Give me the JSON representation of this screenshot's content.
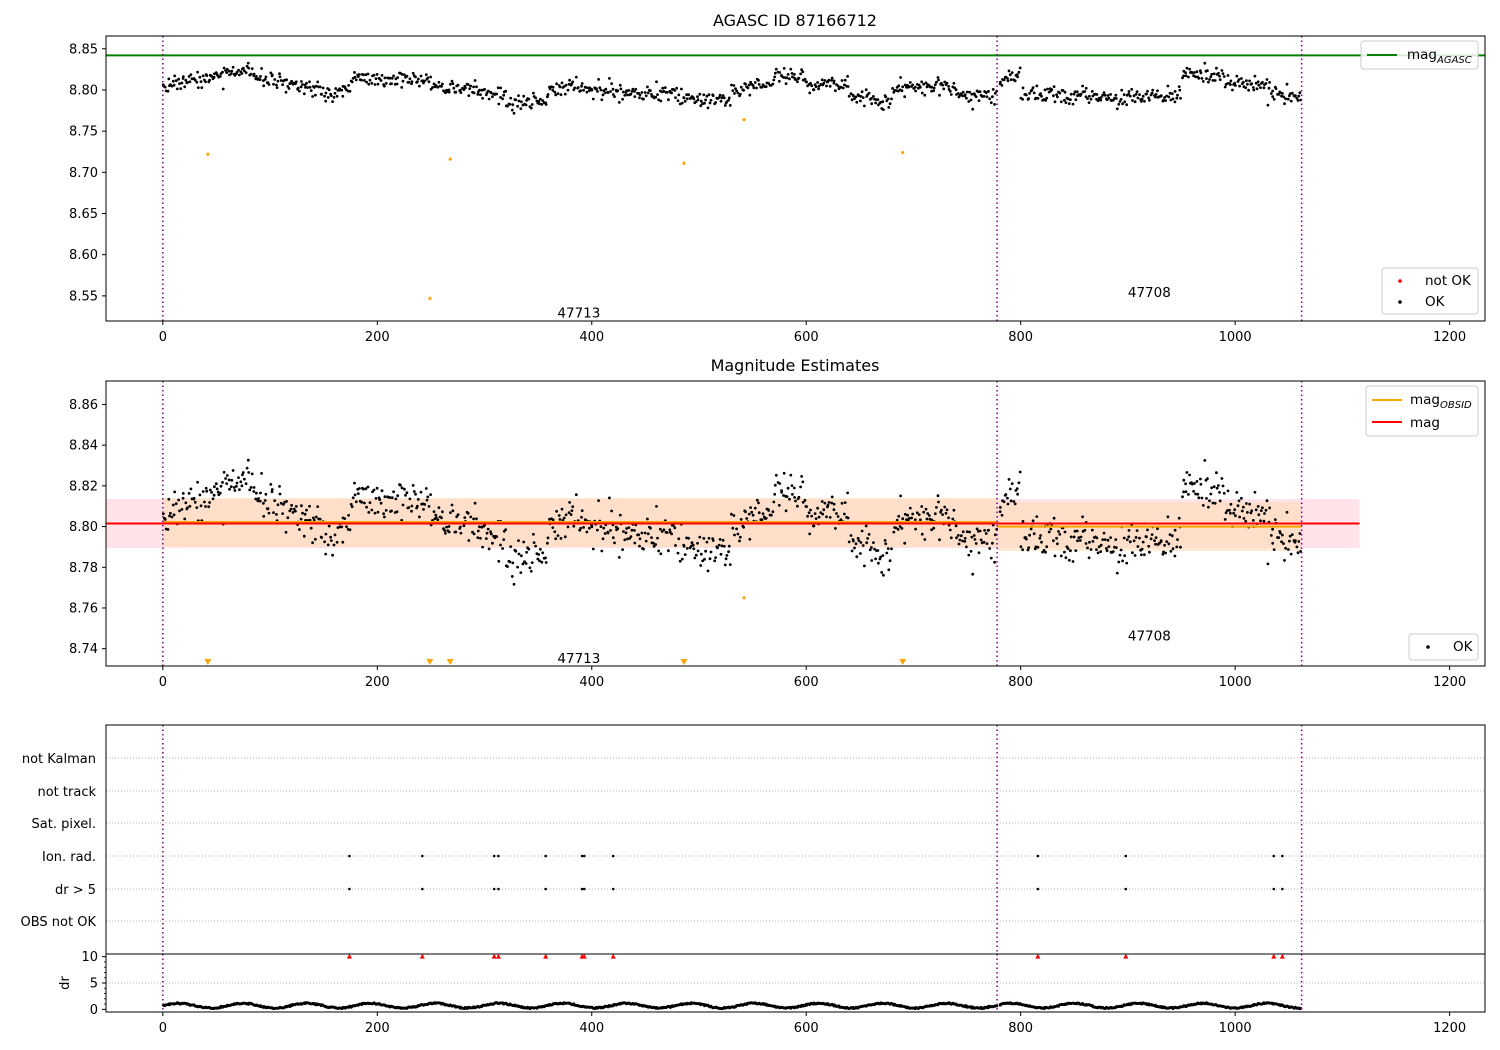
{
  "colors": {
    "ok": "#000000",
    "not_ok": "#ff0000",
    "mag_agasc": "#008000",
    "mag_obsid": "#ffa500",
    "mag": "#ff0000",
    "obs_boundary": "#800080",
    "band_mag": "#ffc0cb",
    "band_obsid": "#ffdab0"
  },
  "chart_data": [
    {
      "type": "scatter",
      "title": "AGASC ID 87166712",
      "xlim": [
        -53,
        1233
      ],
      "ylim": [
        8.5195,
        8.8655
      ],
      "xticks": [
        0,
        200,
        400,
        600,
        800,
        1000,
        1200
      ],
      "yticks": [
        "8.55",
        "8.60",
        "8.65",
        "8.70",
        "8.75",
        "8.80",
        "8.85"
      ],
      "mag_agasc": 8.842,
      "obs_boundaries": [
        0,
        778,
        1062
      ],
      "obs_labels": [
        {
          "text": "47713",
          "x": 388,
          "y": 8.53
        },
        {
          "text": "47708",
          "x": 920,
          "y": 8.555
        }
      ],
      "outliers": [
        {
          "x": 42,
          "y": 8.722
        },
        {
          "x": 249,
          "y": 8.547
        },
        {
          "x": 268,
          "y": 8.716
        },
        {
          "x": 486,
          "y": 8.711
        },
        {
          "x": 542,
          "y": 8.764
        },
        {
          "x": 690,
          "y": 8.724
        }
      ],
      "segments": [
        {
          "x0": 0,
          "x1": 60,
          "y0": 8.808,
          "y1": 8.818,
          "noise": 0.005
        },
        {
          "x0": 60,
          "x1": 85,
          "y0": 8.824,
          "y1": 8.822,
          "noise": 0.004
        },
        {
          "x0": 85,
          "x1": 150,
          "y0": 8.815,
          "y1": 8.8,
          "noise": 0.005
        },
        {
          "x0": 150,
          "x1": 175,
          "y0": 8.79,
          "y1": 8.802,
          "noise": 0.005
        },
        {
          "x0": 175,
          "x1": 250,
          "y0": 8.815,
          "y1": 8.812,
          "noise": 0.005
        },
        {
          "x0": 250,
          "x1": 320,
          "y0": 8.805,
          "y1": 8.793,
          "noise": 0.005
        },
        {
          "x0": 320,
          "x1": 360,
          "y0": 8.782,
          "y1": 8.788,
          "noise": 0.005
        },
        {
          "x0": 360,
          "x1": 420,
          "y0": 8.805,
          "y1": 8.8,
          "noise": 0.005
        },
        {
          "x0": 420,
          "x1": 480,
          "y0": 8.797,
          "y1": 8.797,
          "noise": 0.005
        },
        {
          "x0": 480,
          "x1": 530,
          "y0": 8.788,
          "y1": 8.788,
          "noise": 0.005
        },
        {
          "x0": 530,
          "x1": 570,
          "y0": 8.8,
          "y1": 8.806,
          "noise": 0.005
        },
        {
          "x0": 570,
          "x1": 600,
          "y0": 8.818,
          "y1": 8.815,
          "noise": 0.005
        },
        {
          "x0": 600,
          "x1": 640,
          "y0": 8.805,
          "y1": 8.81,
          "noise": 0.005
        },
        {
          "x0": 640,
          "x1": 680,
          "y0": 8.795,
          "y1": 8.786,
          "noise": 0.005
        },
        {
          "x0": 680,
          "x1": 740,
          "y0": 8.802,
          "y1": 8.805,
          "noise": 0.005
        },
        {
          "x0": 740,
          "x1": 778,
          "y0": 8.795,
          "y1": 8.79,
          "noise": 0.005
        },
        {
          "x0": 780,
          "x1": 800,
          "y0": 8.81,
          "y1": 8.818,
          "noise": 0.005
        },
        {
          "x0": 800,
          "x1": 900,
          "y0": 8.795,
          "y1": 8.79,
          "noise": 0.005
        },
        {
          "x0": 900,
          "x1": 950,
          "y0": 8.795,
          "y1": 8.793,
          "noise": 0.005
        },
        {
          "x0": 950,
          "x1": 990,
          "y0": 8.822,
          "y1": 8.815,
          "noise": 0.005
        },
        {
          "x0": 990,
          "x1": 1030,
          "y0": 8.81,
          "y1": 8.805,
          "noise": 0.005
        },
        {
          "x0": 1030,
          "x1": 1062,
          "y0": 8.798,
          "y1": 8.79,
          "noise": 0.005
        }
      ],
      "legend_lines": [
        {
          "label_base": "mag",
          "label_sub": "AGASC"
        }
      ],
      "legend_points": [
        "not OK",
        "OK"
      ]
    },
    {
      "type": "scatter",
      "title": "Magnitude Estimates",
      "xlim": [
        -53,
        1233
      ],
      "ylim": [
        8.7315,
        8.8715
      ],
      "xticks": [
        0,
        200,
        400,
        600,
        800,
        1000,
        1200
      ],
      "yticks": [
        "8.74",
        "8.76",
        "8.78",
        "8.80",
        "8.82",
        "8.84",
        "8.86"
      ],
      "mag": 8.8015,
      "mag_band": [
        8.7895,
        8.8135
      ],
      "mag_obsid": [
        {
          "x0": 0,
          "x1": 778,
          "value": 8.8022,
          "band": [
            8.79,
            8.814
          ]
        },
        {
          "x0": 778,
          "x1": 1062,
          "value": 8.8,
          "band": [
            8.788,
            8.812
          ]
        }
      ],
      "obs_boundaries": [
        0,
        778,
        1062
      ],
      "obs_labels": [
        {
          "text": "47713",
          "x": 388,
          "y": 8.7355
        },
        {
          "text": "47708",
          "x": 920,
          "y": 8.7465
        }
      ],
      "clipped_markers": [
        42,
        249,
        268,
        486,
        690
      ],
      "outliers_in_range": [
        {
          "x": 542,
          "y": 8.765
        }
      ],
      "legend_lines": [
        {
          "label_base": "mag",
          "label_sub": "OBSID"
        },
        {
          "label_base": "mag",
          "label_sub": ""
        }
      ],
      "legend_points": [
        "OK"
      ]
    },
    {
      "type": "scatter",
      "title": "",
      "xlim": [
        -53,
        1233
      ],
      "flag_labels": [
        "not Kalman",
        "not track",
        "Sat. pixel.",
        "Ion. rad.",
        "dr > 5",
        "OBS not OK"
      ],
      "flagged_x": [
        174,
        242,
        309,
        313,
        357,
        391,
        393,
        420,
        816,
        898,
        1036,
        1044
      ],
      "flags_set": [
        "Ion. rad.",
        "dr > 5"
      ],
      "obs_boundaries": [
        0,
        778,
        1062
      ]
    },
    {
      "type": "scatter",
      "title": "",
      "ylabel": "dr",
      "xlim": [
        -53,
        1233
      ],
      "ylim": [
        -0.5,
        10.5
      ],
      "xticks": [
        0,
        200,
        400,
        600,
        800,
        1000,
        1200
      ],
      "yticks": [
        "0",
        "5",
        "10"
      ],
      "clip_value": 10,
      "flagged_x": [
        174,
        242,
        309,
        313,
        357,
        391,
        393,
        420,
        816,
        898,
        1036,
        1044
      ],
      "obs_boundaries": [
        0,
        778,
        1062
      ]
    }
  ]
}
